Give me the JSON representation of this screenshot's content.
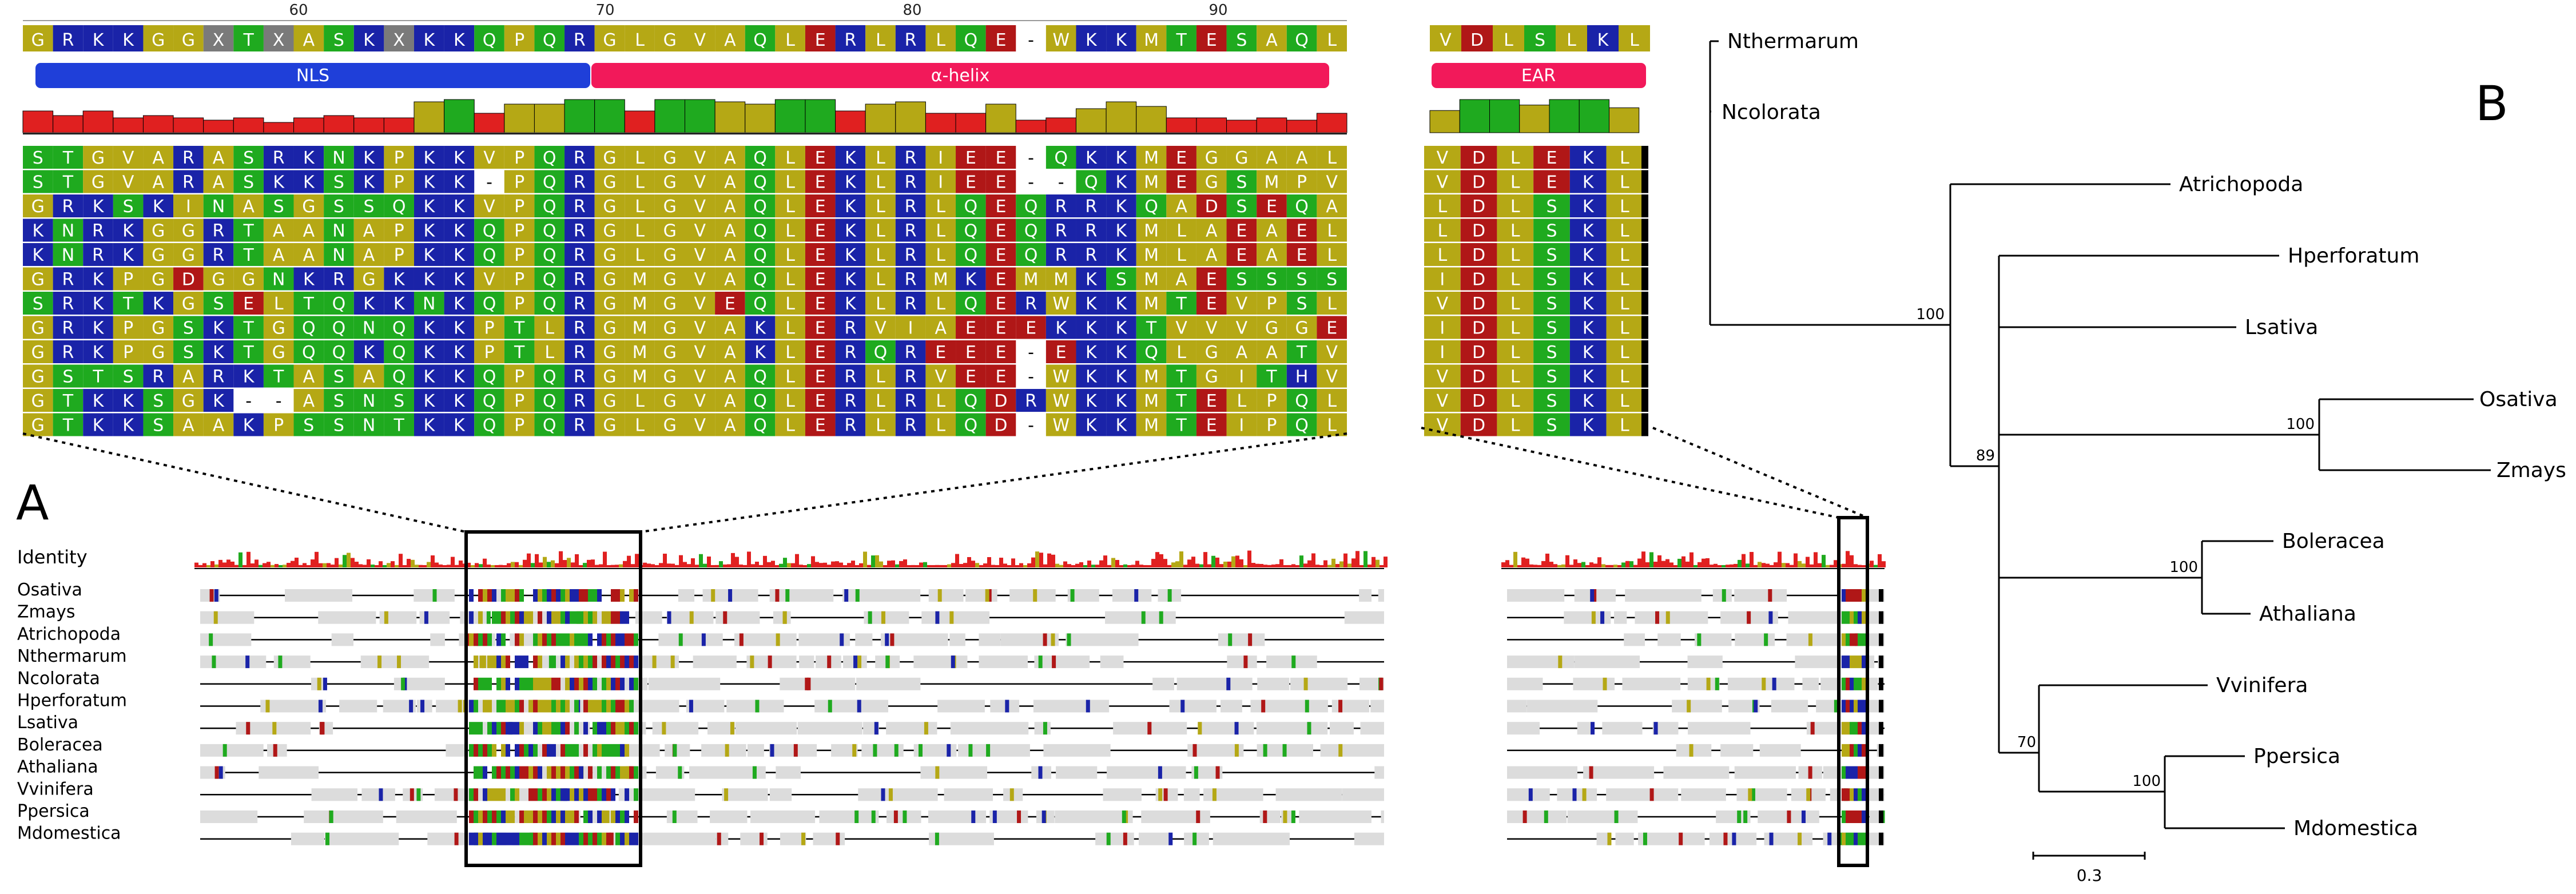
{
  "panel_a": {
    "label": "A",
    "identity_label": "Identity",
    "ruler_ticks": [
      "60",
      "70",
      "80",
      "90"
    ],
    "domains": [
      {
        "name": "NLS",
        "color": "#1f3fd9"
      },
      {
        "name": "α-helix",
        "color": "#f2195a"
      },
      {
        "name": "EAR",
        "color": "#f2195a"
      }
    ],
    "consensus": "GRKKGGXTXASKXKKQPQRGLGVAQLERLRLQE-WKKMTESAQL",
    "ear_consensus": "VDLSLKL",
    "alignment_rows": [
      {
        "main": "STGVARASRKNKPKKVPQRGLGVAQLEKLRIEE-QKKMEGGAAL",
        "ear": "VDLEKL"
      },
      {
        "main": "STGVARASKKSKPKK-PQRGLGVAQLEKLRIEE--QKMEGSMPV",
        "ear": "VDLEKL"
      },
      {
        "main": "GRKSKINASGSSQKKVPQRGLGVAQLEKLRLQEQRRKQADSEQA",
        "ear": "LDLSKL"
      },
      {
        "main": "KNRKGGRTAANAPKKQPQRGLGVAQLEKLRLQEQRRKMLAEAEL",
        "ear": "LDLSKL"
      },
      {
        "main": "KNRKGGRTAANAPKKQPQRGLGVAQLEKLRLQEQRRKMLAEAEL",
        "ear": "LDLSKL"
      },
      {
        "main": "GRKPGDGGNKRGKKKVPQRGMGVAQLEKLRMKEMMKSMAESSSS",
        "ear": "IDLSKL"
      },
      {
        "main": "SRKTKGSELTQKKNKQPQRGMGVEQLEKLRLQERWKKMTEVPSL",
        "ear": "VDLSKL"
      },
      {
        "main": "GRKPGSKTGQQNQKKPTLRGMGVAKLERVIAEEEKKKTVVVGGE",
        "ear": "IDLSKL"
      },
      {
        "main": "GRKPGSKTGQQKQKKPTLRGMGVAKLERQREEE-EKKQLGAATV",
        "ear": "IDLSKL"
      },
      {
        "main": "GSTSRARKTASAQKKQPQRGMGVAQLERLRVEE-WKKMTGITHV",
        "ear": "VDLSKL"
      },
      {
        "main": "GTKKSGK--ASNSKKQPQRGLGVAQLERLRLQDRWKKMTELPQL",
        "ear": "VDLSKL"
      },
      {
        "main": "GTKKSAAKPSSNTKKQPQRGLGVAQLERLRLQD-WKKMTEIPQL",
        "ear": "VDLSKL"
      }
    ],
    "species": [
      "Osativa",
      "Zmays",
      "Atrichopoda",
      "Nthermarum",
      "Ncolorata",
      "Hperforatum",
      "Lsativa",
      "Boleracea",
      "Athaliana",
      "Vvinifera",
      "Ppersica",
      "Mdomestica"
    ],
    "residue_colors": {
      "hydrophobic": "#b5a815",
      "basic": "#1a23a8",
      "acidic": "#b01717",
      "polar": "#1faa1f",
      "ambiguous": "#7a7a7a",
      "gap_line": "#000000",
      "conserved_block": "#dcdcdc",
      "identity_high": "#1faa1f",
      "identity_mid": "#b5a815",
      "identity_low": "#e02020"
    }
  },
  "panel_b": {
    "label": "B",
    "scale_label": "0.3",
    "taxa": [
      "Nthermarum",
      "Ncolorata",
      "Atrichopoda",
      "Hperforatum",
      "Lsativa",
      "Osativa",
      "Zmays",
      "Boleracea",
      "Athaliana",
      "Vvinifera",
      "Ppersica",
      "Mdomestica"
    ],
    "bootstrap": [
      "100",
      "89",
      "100",
      "100",
      "70",
      "100"
    ]
  }
}
